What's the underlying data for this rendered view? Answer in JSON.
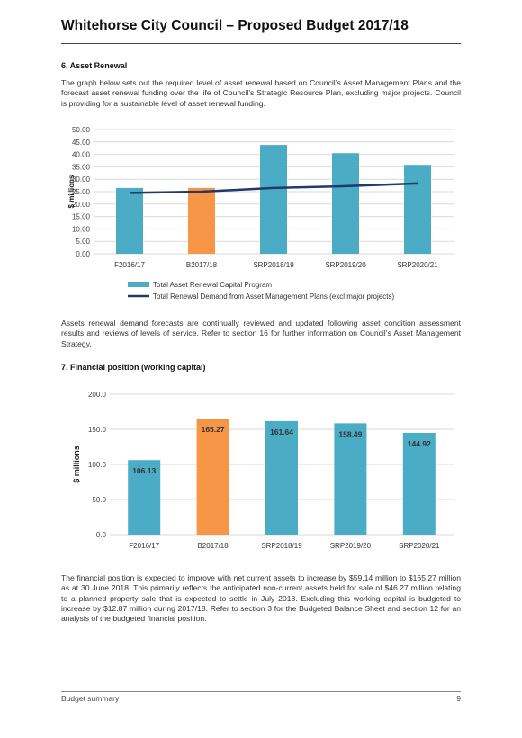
{
  "page": {
    "title": "Whitehorse City Council – Proposed Budget 2017/18"
  },
  "section6": {
    "heading": "6.   Asset Renewal",
    "intro": "The graph below sets out the required level of asset renewal based on Council’s Asset Management Plans and the forecast asset renewal funding over the life of Council’s Strategic Resource Plan, excluding major projects. Council is providing for a sustainable level of asset renewal funding.",
    "after": "Assets renewal demand forecasts are continually reviewed and updated following asset condition assessment results and reviews of levels of service. Refer to section 16 for further information on Council’s Asset Management Strategy."
  },
  "section7": {
    "heading": "7.   Financial position (working capital)",
    "after": "The financial position is expected to improve with net current assets to increase by $59.14 million to $165.27 million as at 30 June 2018. This primarily reflects the anticipated non-current assets held for sale of $46.27 million relating to a planned property sale that is expected to settle in July 2018. Excluding this working capital is budgeted to increase by $12.87 million during 2017/18. Refer to section 3 for the Budgeted Balance Sheet and section 12 for an analysis of the budgeted financial position."
  },
  "footer": {
    "left": "Budget summary",
    "right": "9"
  },
  "colors": {
    "bar": "#4bacc6",
    "highlight": "#f79646",
    "line": "#1f3a6b",
    "grid": "#d9d9d9"
  },
  "chart_data": [
    {
      "type": "bar",
      "categories": [
        "F2016/17",
        "B2017/18",
        "SRP2018/19",
        "SRP2019/20",
        "SRP2020/21"
      ],
      "series": [
        {
          "name": "Total Asset Renewal Capital Program",
          "values": [
            26.5,
            26.5,
            43.8,
            40.5,
            35.8
          ],
          "kind": "bar"
        },
        {
          "name": "Total Renewal Demand from Asset Management Plans (excl major projects)",
          "values": [
            24.5,
            25.0,
            26.5,
            27.2,
            28.3
          ],
          "kind": "line"
        }
      ],
      "highlight_index": 1,
      "ylabel": "$ millions",
      "ylim": [
        0,
        50
      ],
      "yticks": [
        "0.00",
        "5.00",
        "10.00",
        "15.00",
        "20.00",
        "25.00",
        "30.00",
        "35.00",
        "40.00",
        "45.00",
        "50.00"
      ],
      "legend": "bottom",
      "grid": true
    },
    {
      "type": "bar",
      "categories": [
        "F2016/17",
        "B2017/18",
        "SRP2018/19",
        "SRP2019/20",
        "SRP2020/21"
      ],
      "values": [
        106.13,
        165.27,
        161.64,
        158.49,
        144.92
      ],
      "data_labels": [
        "106.13",
        "165.27",
        "161.64",
        "158.49",
        "144.92"
      ],
      "highlight_index": 1,
      "ylabel": "$ millions",
      "ylim": [
        0,
        200
      ],
      "yticks": [
        "0.0",
        "50.0",
        "100.0",
        "150.0",
        "200.0"
      ],
      "grid": true
    }
  ]
}
